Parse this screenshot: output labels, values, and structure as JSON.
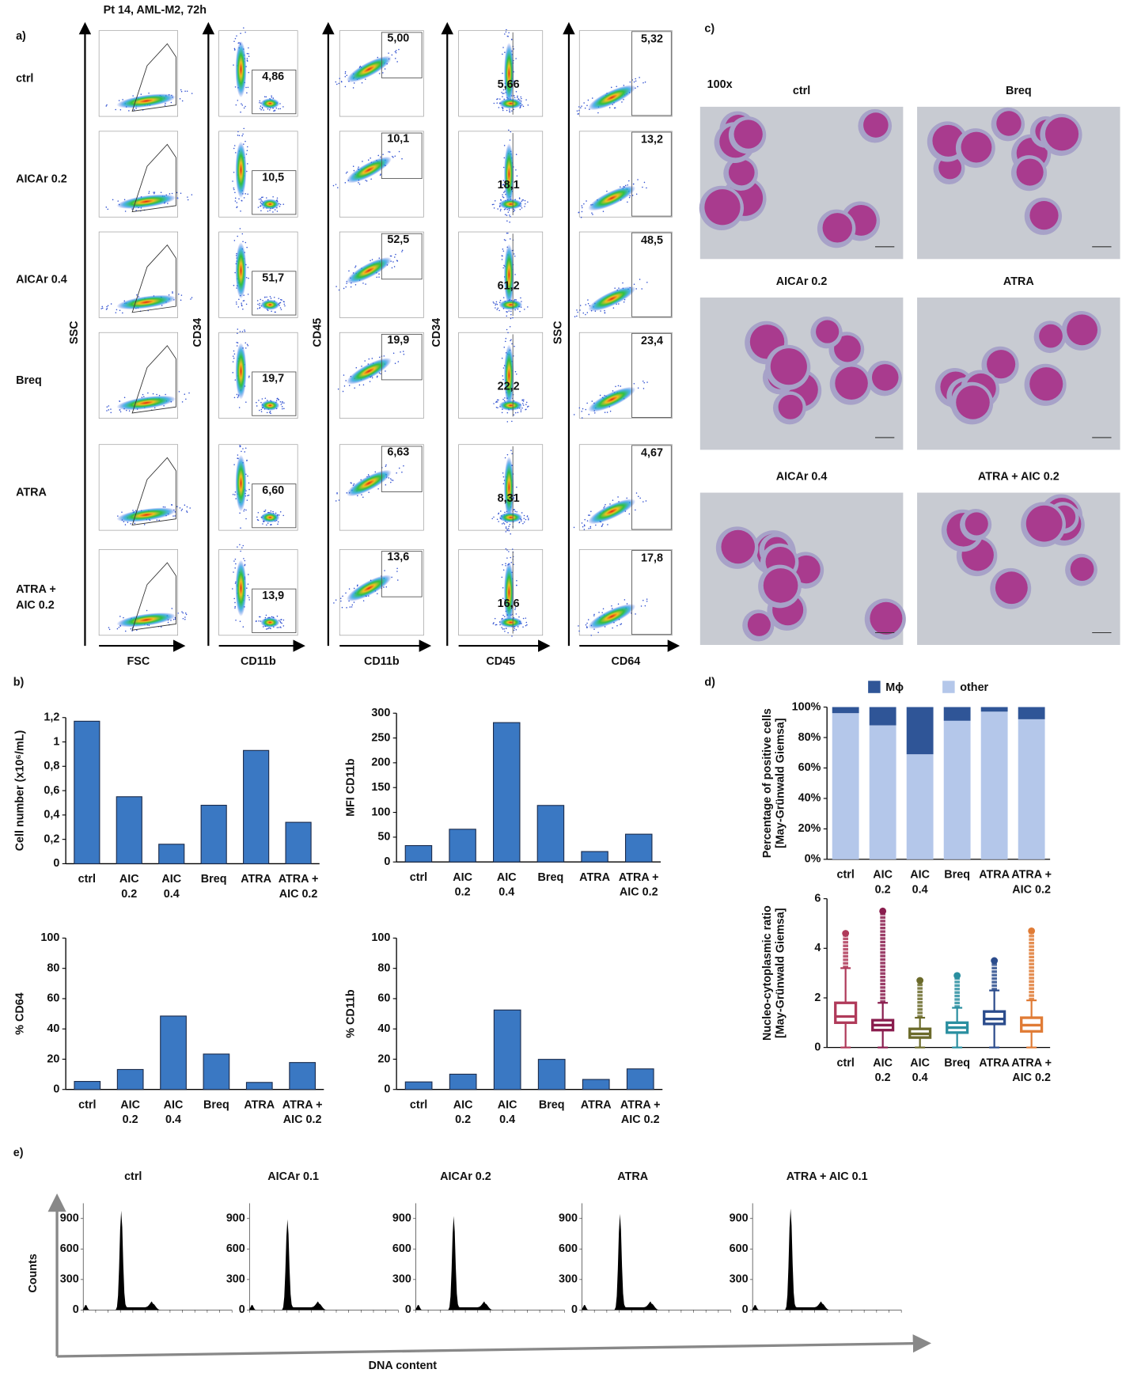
{
  "panel_labels": [
    "a)",
    "b)",
    "c)",
    "d)",
    "e)"
  ],
  "flow": {
    "title": "Pt 14, AML-M2, 72h",
    "rows": [
      [
        "ctrl"
      ],
      [
        "AICAr 0.2"
      ],
      [
        "AICAr 0.4"
      ],
      [
        "Breq"
      ],
      [
        "ATRA"
      ],
      [
        "ATRA +",
        "AIC 0.2"
      ]
    ],
    "y_axes": [
      "SSC",
      "CD34",
      "CD45",
      "CD34",
      "SSC"
    ],
    "x_axes": [
      "FSC",
      "CD11b",
      "CD11b",
      "CD45",
      "CD64"
    ],
    "gates": [
      [
        "4,86",
        "10,5",
        "51,7",
        "19,7",
        "6,60",
        "13,9"
      ],
      [
        "5,00",
        "10,1",
        "52,5",
        "19,9",
        "6,63",
        "13,6"
      ],
      [
        "5,66",
        "18,1",
        "61,2",
        "22,2",
        "8,31",
        "16,6"
      ],
      [
        "5,32",
        "13,2",
        "48,5",
        "23,4",
        "4,67",
        "17,8"
      ]
    ]
  },
  "micrographs": {
    "magnification": "100x",
    "labels": [
      "ctrl",
      "Breq",
      "AICAr 0.2",
      "ATRA",
      "AICAr 0.4",
      "ATRA + AIC 0.2"
    ]
  },
  "chart_data": [
    {
      "type": "bar",
      "y_label": "Cell number (x10⁶/mL)",
      "color": "#3a78c3",
      "categories": [
        [
          "ctrl"
        ],
        [
          "AIC",
          "0.2"
        ],
        [
          "AIC",
          "0.4"
        ],
        [
          "Breq"
        ],
        [
          "ATRA"
        ],
        [
          "ATRA +",
          "AIC 0.2"
        ]
      ],
      "values": [
        1.17,
        0.55,
        0.16,
        0.48,
        0.93,
        0.34
      ],
      "ylim": [
        0,
        1.2
      ],
      "yticks": [
        0,
        {
          "value": 0.2,
          "label": "0,2"
        },
        {
          "value": 0.4,
          "label": "0,4"
        },
        {
          "value": 0.6,
          "label": "0,6"
        },
        {
          "value": 0.8,
          "label": "0,8"
        },
        1,
        {
          "value": 1.2,
          "label": "1,2"
        }
      ]
    },
    {
      "type": "bar",
      "y_label": "MFI CD11b",
      "color": "#3a78c3",
      "categories": [
        [
          "ctrl"
        ],
        [
          "AIC",
          "0.2"
        ],
        [
          "AIC",
          "0.4"
        ],
        [
          "Breq"
        ],
        [
          "ATRA"
        ],
        [
          "ATRA +",
          "AIC 0.2"
        ]
      ],
      "values": [
        33,
        66,
        281,
        114,
        21,
        56
      ],
      "ylim": [
        0,
        300
      ],
      "yticks": [
        0,
        50,
        100,
        150,
        200,
        250,
        300
      ]
    },
    {
      "type": "bar",
      "y_label": "% CD64",
      "color": "#3a78c3",
      "categories": [
        [
          "ctrl"
        ],
        [
          "AIC",
          "0.2"
        ],
        [
          "AIC",
          "0.4"
        ],
        [
          "Breq"
        ],
        [
          "ATRA"
        ],
        [
          "ATRA +",
          "AIC 0.2"
        ]
      ],
      "values": [
        5.32,
        13.2,
        48.5,
        23.4,
        4.67,
        17.8
      ],
      "ylim": [
        0,
        100
      ],
      "yticks": [
        0,
        20,
        40,
        60,
        80,
        100
      ]
    },
    {
      "type": "bar",
      "y_label": "% CD11b",
      "color": "#3a78c3",
      "categories": [
        [
          "ctrl"
        ],
        [
          "AIC",
          "0.2"
        ],
        [
          "AIC",
          "0.4"
        ],
        [
          "Breq"
        ],
        [
          "ATRA"
        ],
        [
          "ATRA +",
          "AIC 0.2"
        ]
      ],
      "values": [
        5.0,
        10.1,
        52.5,
        19.9,
        6.63,
        13.6
      ],
      "ylim": [
        0,
        100
      ],
      "yticks": [
        0,
        20,
        40,
        60,
        80,
        100
      ]
    },
    {
      "type": "stacked_bar",
      "y_label": [
        "Percentage of positive cells",
        "[May-Grünwald Giemsa]"
      ],
      "categories": [
        [
          "ctrl"
        ],
        [
          "AIC",
          "0.2"
        ],
        [
          "AIC",
          "0.4"
        ],
        [
          "Breq"
        ],
        [
          "ATRA"
        ],
        [
          "ATRA +",
          "AIC 0.2"
        ]
      ],
      "series": [
        {
          "name": "other",
          "color": "#b4c7ea",
          "values": [
            96,
            88,
            69,
            91,
            97,
            92
          ]
        },
        {
          "name": "Mϕ",
          "color": "#2f5597",
          "values": [
            4,
            12,
            31,
            9,
            3,
            8
          ]
        }
      ],
      "ylim": [
        0,
        100
      ],
      "yticks": [
        {
          "value": 0,
          "label": "0%"
        },
        {
          "value": 20,
          "label": "20%"
        },
        {
          "value": 40,
          "label": "40%"
        },
        {
          "value": 60,
          "label": "60%"
        },
        {
          "value": 80,
          "label": "80%"
        },
        {
          "value": 100,
          "label": "100%"
        }
      ]
    },
    {
      "type": "box",
      "y_label": [
        "Nucleo-cytoplasmic ratio",
        "[May-Grünwald Giemsa]"
      ],
      "categories": [
        [
          "ctrl"
        ],
        [
          "AIC",
          "0.2"
        ],
        [
          "AIC",
          "0.4"
        ],
        [
          "Breq"
        ],
        [
          "ATRA"
        ],
        [
          "ATRA +",
          "AIC 0.2"
        ]
      ],
      "colors": [
        "#b03a5a",
        "#8a1d4e",
        "#6b6a2a",
        "#2a8fa0",
        "#2b4c8c",
        "#e07b35"
      ],
      "whisker_low": [
        0,
        0,
        0,
        0,
        0,
        0
      ],
      "q1": [
        1.0,
        0.7,
        0.4,
        0.6,
        0.95,
        0.65
      ],
      "median": [
        1.25,
        0.9,
        0.55,
        0.8,
        1.15,
        0.9
      ],
      "q3": [
        1.8,
        1.1,
        0.75,
        1.0,
        1.45,
        1.2
      ],
      "whisker_high": [
        3.2,
        1.8,
        1.2,
        1.6,
        2.3,
        1.9
      ],
      "max": [
        4.6,
        5.5,
        2.7,
        2.9,
        3.5,
        4.7
      ],
      "ylim": [
        0,
        6
      ],
      "yticks": [
        0,
        2,
        4,
        6
      ]
    }
  ],
  "cell_cycle": {
    "labels": [
      "ctrl",
      "AICAr 0.1",
      "AICAr 0.2",
      "ATRA",
      "ATRA + AIC 0.1"
    ],
    "yticks": [
      0,
      300,
      600,
      900
    ],
    "y_axis": "Counts",
    "x_axis": "DNA content"
  }
}
